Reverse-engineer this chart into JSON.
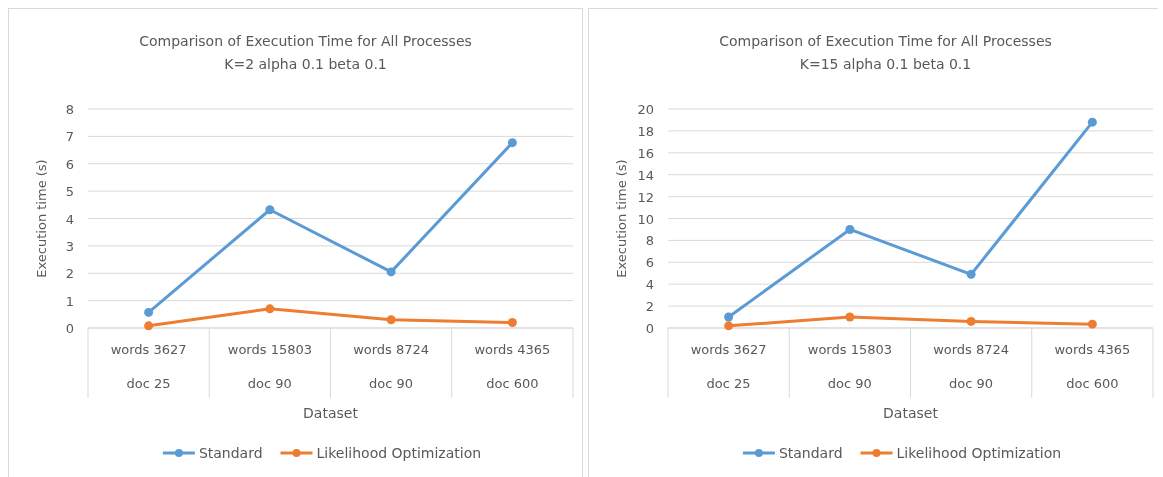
{
  "chart_data": [
    {
      "type": "line",
      "title": "Comparison of Execution Time for All Processes",
      "subtitle": "K=2 alpha 0.1 beta 0.1",
      "xlabel": "Dataset",
      "ylabel": "Execution time (s)",
      "categories": [
        "words 3627\ndoc 25",
        "words 15803\ndoc 90",
        "words 8724\ndoc 90",
        "words 4365\ndoc 600"
      ],
      "series": [
        {
          "name": "Standard",
          "color": "#5b9bd5",
          "values": [
            0.57,
            4.32,
            2.05,
            6.77
          ]
        },
        {
          "name": "Likelihood Optimization",
          "color": "#ed7d31",
          "values": [
            0.08,
            0.7,
            0.3,
            0.2
          ]
        }
      ],
      "ylim": [
        0,
        8
      ],
      "yticks": [
        0,
        1,
        2,
        3,
        4,
        5,
        6,
        7,
        8
      ],
      "grid": "y",
      "legend": "bottom",
      "marker": "circle",
      "line_style": "solid"
    },
    {
      "type": "line",
      "title": "Comparison of Execution Time for All Processes",
      "subtitle": "K=15 alpha 0.1 beta 0.1",
      "xlabel": "Dataset",
      "ylabel": "Execution time (s)",
      "categories": [
        "words 3627\ndoc 25",
        "words 15803\ndoc 90",
        "words 8724\ndoc 90",
        "words 4365\ndoc 600"
      ],
      "series": [
        {
          "name": "Standard",
          "color": "#5b9bd5",
          "values": [
            1.0,
            9.0,
            4.9,
            18.8
          ]
        },
        {
          "name": "Likelihood Optimization",
          "color": "#ed7d31",
          "values": [
            0.2,
            1.0,
            0.6,
            0.35
          ]
        }
      ],
      "ylim": [
        0,
        20
      ],
      "yticks": [
        0,
        2,
        4,
        6,
        8,
        10,
        12,
        14,
        16,
        18,
        20
      ],
      "grid": "y",
      "legend": "bottom",
      "marker": "circle",
      "line_style": "solid"
    }
  ]
}
